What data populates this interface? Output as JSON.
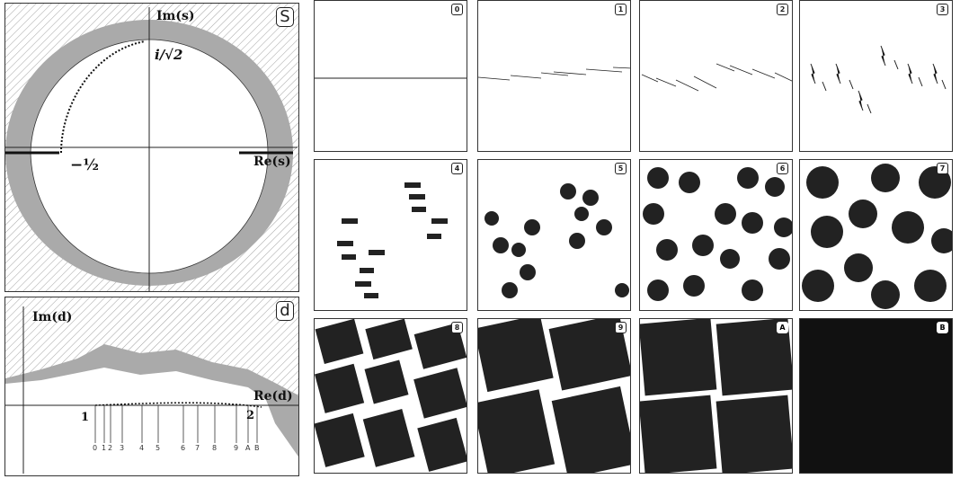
{
  "s_panel": {
    "badge": "S",
    "im_label": "Im(s)",
    "re_label": "Re(s)",
    "point_top": "i/√2",
    "point_left": "−½"
  },
  "d_panel": {
    "badge": "d",
    "im_label": "Im(d)",
    "re_label": "Re(d)",
    "point_1": "1",
    "point_2": "2",
    "ticks": [
      "0",
      "1",
      "2",
      "3",
      "4",
      "5",
      "6",
      "7",
      "8",
      "9",
      "A",
      "B"
    ]
  },
  "grid": {
    "badges": [
      "0",
      "1",
      "2",
      "3",
      "4",
      "5",
      "6",
      "7",
      "8",
      "9",
      "A",
      "B"
    ]
  }
}
